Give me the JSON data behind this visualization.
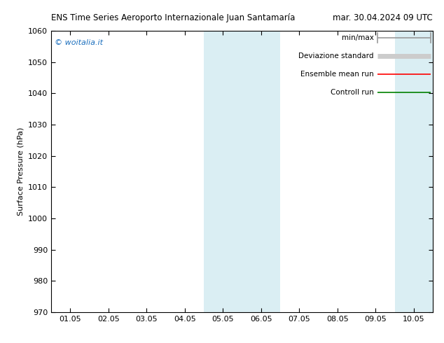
{
  "title_left": "ENS Time Series Aeroporto Internazionale Juan Santamaría",
  "title_right": "mar. 30.04.2024 09 UTC",
  "ylabel": "Surface Pressure (hPa)",
  "watermark": "© woitalia.it",
  "ylim": [
    970,
    1060
  ],
  "yticks": [
    970,
    980,
    990,
    1000,
    1010,
    1020,
    1030,
    1040,
    1050,
    1060
  ],
  "x_tick_labels": [
    "01.05",
    "02.05",
    "03.05",
    "04.05",
    "05.05",
    "06.05",
    "07.05",
    "08.05",
    "09.05",
    "10.05"
  ],
  "x_positions": [
    0,
    1,
    2,
    3,
    4,
    5,
    6,
    7,
    8,
    9
  ],
  "xlim": [
    -0.5,
    9.5
  ],
  "shaded_regions": [
    {
      "xmin": 3.5,
      "xmax": 5.5,
      "color": "#daeef3"
    },
    {
      "xmin": 8.5,
      "xmax": 9.5,
      "color": "#daeef3"
    }
  ],
  "legend_items": [
    {
      "label": "min/max",
      "color": "#999999",
      "lw": 1.2,
      "style": "caps"
    },
    {
      "label": "Deviazione standard",
      "color": "#cccccc",
      "lw": 5,
      "style": "solid"
    },
    {
      "label": "Ensemble mean run",
      "color": "#ff0000",
      "lw": 1.2,
      "style": "solid"
    },
    {
      "label": "Controll run",
      "color": "#008000",
      "lw": 1.2,
      "style": "solid"
    }
  ],
  "background_color": "#ffffff",
  "plot_bg_color": "#ffffff",
  "title_fontsize": 8.5,
  "watermark_color": "#1a6ebd",
  "watermark_fontsize": 8,
  "legend_fontsize": 7.5,
  "ylabel_fontsize": 8,
  "tick_fontsize": 8
}
